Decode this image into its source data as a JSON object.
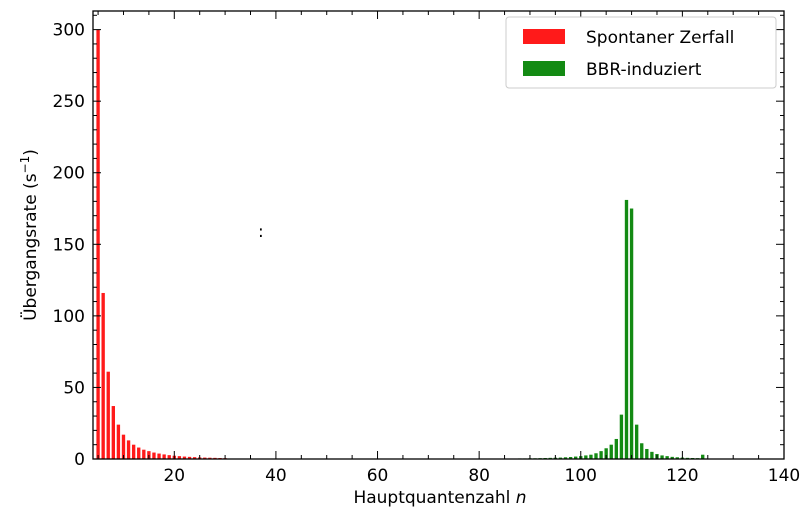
{
  "chart_data": {
    "type": "bar",
    "xlabel_main": "Hauptquantenzahl ",
    "xlabel_var": "n",
    "ylabel_main": "Übergangsrate (s",
    "ylabel_sup": "−1",
    "ylabel_end": ")",
    "xlim": [
      4,
      140
    ],
    "ylim": [
      0,
      313
    ],
    "x_ticks": [
      20,
      40,
      60,
      80,
      100,
      120,
      140
    ],
    "y_ticks": [
      0,
      50,
      100,
      150,
      200,
      250,
      300
    ],
    "annotation": ":",
    "legend_position": "top-right",
    "colors": {
      "spontan": "#ff1a1a",
      "bbr": "#138a13"
    },
    "series": [
      {
        "name": "Spontaner Zerfall",
        "x": [
          5,
          6,
          7,
          8,
          9,
          10,
          11,
          12,
          13,
          14,
          15,
          16,
          17,
          18,
          19,
          20,
          21,
          22,
          23,
          24,
          25,
          26,
          27,
          28,
          29,
          30
        ],
        "values": [
          300,
          116,
          61,
          37,
          24,
          17,
          13,
          10,
          8,
          6.5,
          5.5,
          4.5,
          3.8,
          3.2,
          2.7,
          2.3,
          2.0,
          1.7,
          1.5,
          1.3,
          1.1,
          1.0,
          0.9,
          0.8,
          0.7,
          0.6
        ]
      },
      {
        "name": "BBR-induziert",
        "x": [
          86,
          87,
          88,
          89,
          90,
          91,
          92,
          93,
          94,
          95,
          96,
          97,
          98,
          99,
          100,
          101,
          102,
          103,
          104,
          105,
          106,
          107,
          108,
          109,
          110,
          111,
          112,
          113,
          114,
          115,
          116,
          117,
          118,
          119,
          120,
          121,
          122,
          123,
          124,
          125
        ],
        "values": [
          0.3,
          0.3,
          0.4,
          0.4,
          0.5,
          0.5,
          0.6,
          0.7,
          0.8,
          0.9,
          1.0,
          1.2,
          1.4,
          1.7,
          2.0,
          2.5,
          3.0,
          4.0,
          5.5,
          7.5,
          10,
          14,
          31,
          181,
          175,
          24,
          11,
          7,
          5,
          3.5,
          2.5,
          2.0,
          1.5,
          1.2,
          1.0,
          0.8,
          0.7,
          0.6,
          3,
          0.3
        ]
      }
    ]
  }
}
